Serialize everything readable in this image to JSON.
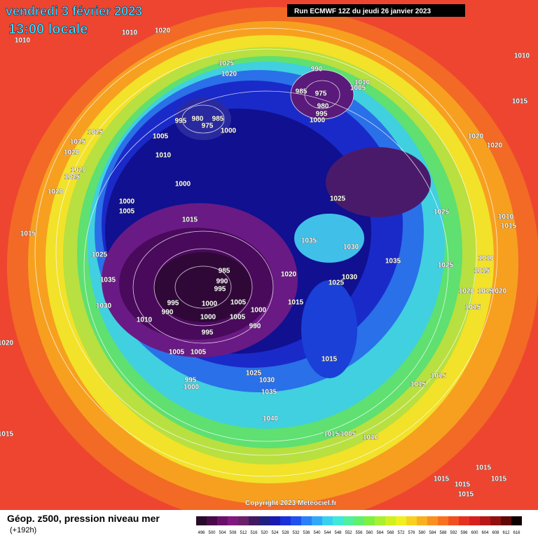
{
  "header": {
    "date": "vendredi 3 février 2023",
    "time": "13:00 locale",
    "run": "Run ECMWF 12Z du jeudi 26 janvier 2023"
  },
  "isobar_labels": [
    1010,
    1020,
    1010,
    1025,
    1020,
    990,
    985,
    975,
    1010,
    1005,
    980,
    995,
    1000,
    1015,
    1010,
    995,
    980,
    975,
    985,
    1000,
    1005,
    1025,
    1025,
    1020,
    1010,
    1020,
    1025,
    1000,
    1020,
    1000,
    1005,
    1025,
    1020,
    1020,
    1025,
    1015,
    1015,
    1035,
    1030,
    1010,
    1015,
    1025,
    1035,
    1010,
    1025,
    1015,
    985,
    1035,
    990,
    995,
    1020,
    1030,
    1025,
    1020,
    1015,
    1020,
    1015,
    1030,
    995,
    1000,
    1005,
    990,
    1000,
    1010,
    1000,
    1005,
    1015,
    990,
    995,
    1020,
    1005,
    1005,
    1015,
    1025,
    1030,
    995,
    1000,
    1035,
    1015,
    1015,
    1040,
    1015,
    1015,
    1005,
    1010,
    1015,
    1015,
    1015,
    1015,
    1015
  ],
  "copyright": "Copyright 2023 Meteociel.fr",
  "legend": {
    "title": "Géop. z500, pression niveau mer",
    "lead": "(+192h)",
    "scale": [
      496,
      500,
      504,
      508,
      512,
      516,
      520,
      524,
      528,
      532,
      536,
      540,
      544,
      548,
      552,
      556,
      560,
      564,
      568,
      572,
      576,
      580,
      584,
      588,
      592,
      596,
      600,
      604,
      608,
      612,
      616
    ]
  }
}
